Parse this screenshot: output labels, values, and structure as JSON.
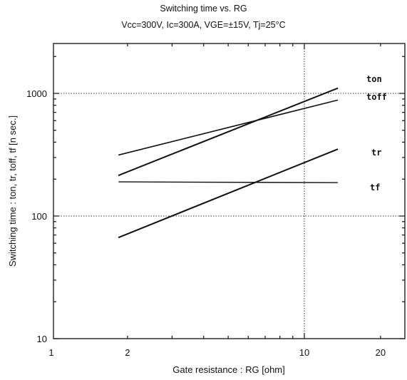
{
  "chart_data": {
    "type": "line",
    "title": "Switching time  vs.  RG",
    "subtitle": "Vcc=300V, Ic=300A, VGE=±15V, Tj=25°C",
    "xlabel": "Gate  resistance  :  RG [ohm]",
    "ylabel": "Switching  time  :  ton, tr, toff, tf  [n sec.]",
    "xscale": "log",
    "yscale": "log",
    "xlim": [
      1,
      25
    ],
    "ylim": [
      10,
      3000
    ],
    "xticks": [
      1,
      2,
      10,
      20
    ],
    "xtick_labels": [
      "1",
      "2",
      "10",
      "20"
    ],
    "yticks": [
      10,
      100,
      1000
    ],
    "ytick_labels": [
      "10",
      "100",
      "1000"
    ],
    "grid": "major dotted",
    "series": [
      {
        "name": "ton",
        "x": [
          1.85,
          13.5
        ],
        "y": [
          215,
          1100
        ]
      },
      {
        "name": "toff",
        "x": [
          1.85,
          13.5
        ],
        "y": [
          315,
          880
        ]
      },
      {
        "name": "tr",
        "x": [
          1.85,
          13.5
        ],
        "y": [
          67,
          350
        ]
      },
      {
        "name": "tf",
        "x": [
          1.85,
          13.5
        ],
        "y": [
          190,
          187
        ]
      }
    ]
  }
}
